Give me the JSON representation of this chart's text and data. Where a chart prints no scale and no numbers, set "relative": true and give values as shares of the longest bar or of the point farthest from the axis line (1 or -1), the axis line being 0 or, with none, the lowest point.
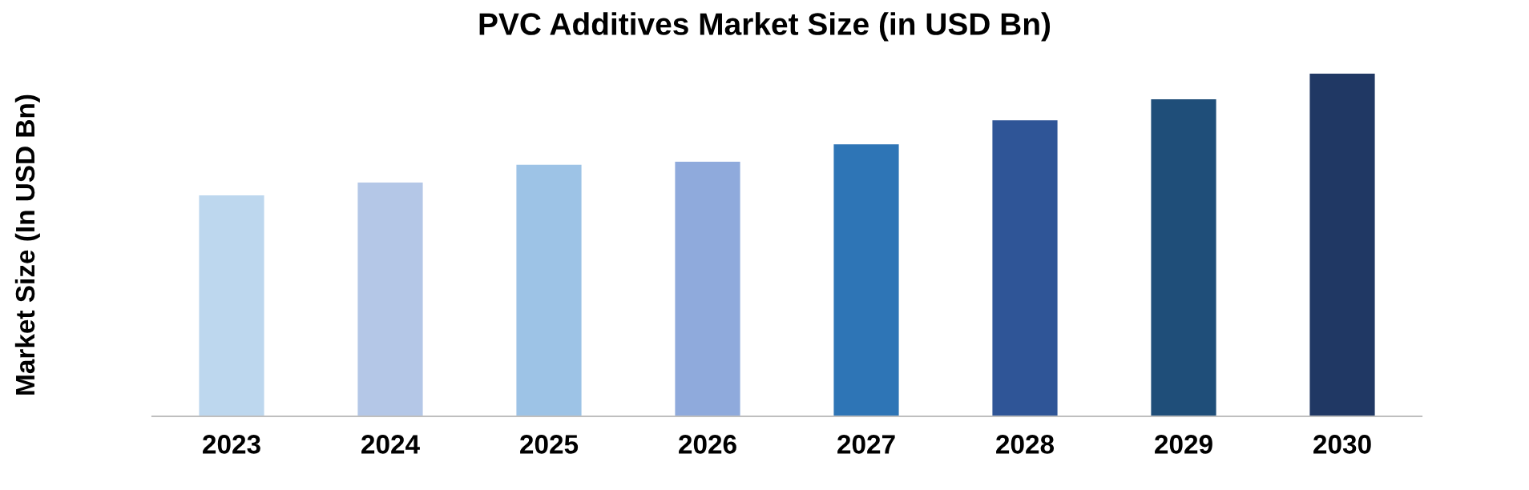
{
  "chart_data": {
    "type": "bar",
    "title": "PVC Additives Market Size (in USD Bn)",
    "ylabel": "Market Size (In USD Bn)",
    "relative": true,
    "categories": [
      "2023",
      "2024",
      "2025",
      "2026",
      "2027",
      "2028",
      "2029",
      "2030"
    ],
    "values": [
      0.645,
      0.682,
      0.734,
      0.743,
      0.794,
      0.864,
      0.925,
      1
    ],
    "colors": [
      "#bdd7ee",
      "#b4c7e7",
      "#9dc3e6",
      "#8faadc",
      "#2e75b6",
      "#2f5597",
      "#1f4e79",
      "#203864"
    ],
    "grid": false,
    "legend": false
  }
}
